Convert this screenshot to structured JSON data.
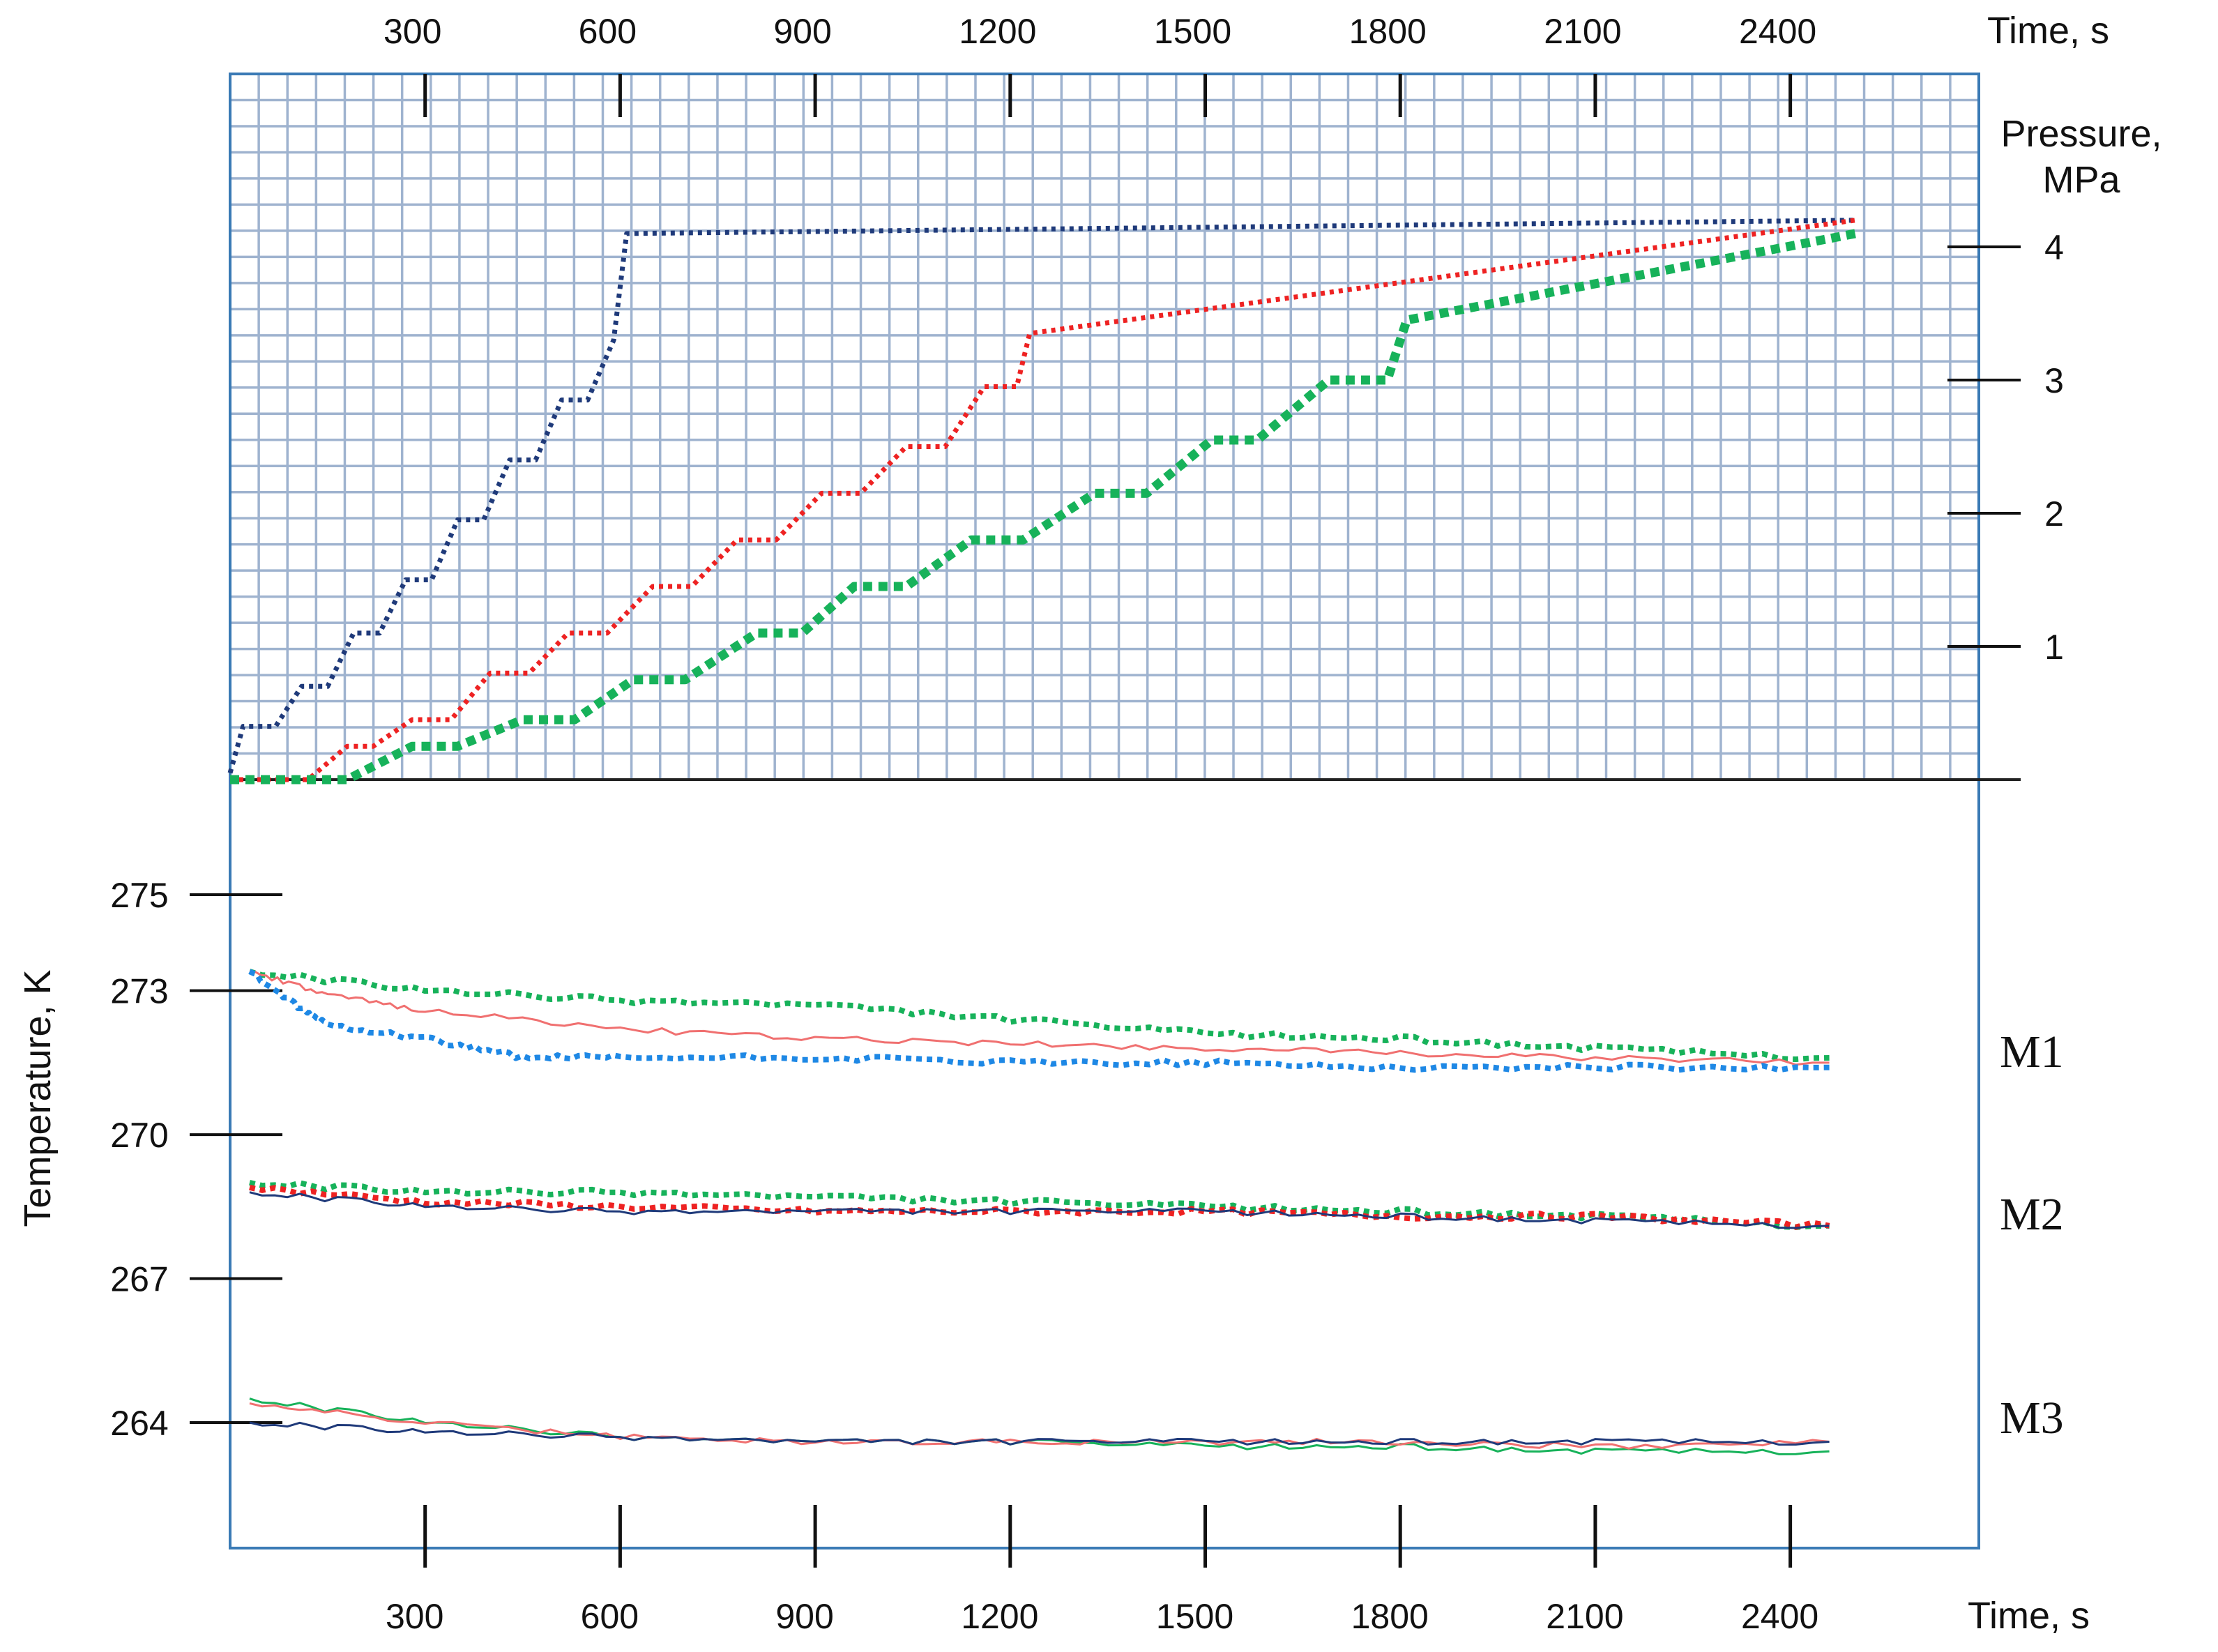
{
  "chart_data": [
    {
      "type": "line",
      "xlabel": "Time, s",
      "ylabel": "Pressure, MPa",
      "xlim": [
        0,
        2500
      ],
      "ylim": [
        0,
        4.4
      ],
      "x_ticks": [
        300,
        600,
        900,
        1200,
        1500,
        1800,
        2100,
        2400
      ],
      "y_ticks": [
        1,
        2,
        3,
        4
      ],
      "grid": true,
      "series": [
        {
          "color": "#1f3a7a",
          "style": "dotted",
          "step": true,
          "x": [
            0,
            20,
            70,
            110,
            150,
            190,
            230,
            270,
            310,
            350,
            390,
            430,
            470,
            510,
            550,
            590,
            610,
            2500
          ],
          "y": [
            0.05,
            0.4,
            0.4,
            0.7,
            0.7,
            1.1,
            1.1,
            1.5,
            1.5,
            1.95,
            1.95,
            2.4,
            2.4,
            2.85,
            2.85,
            3.3,
            4.1,
            4.2
          ]
        },
        {
          "color": "#ee2222",
          "style": "dotted",
          "step": true,
          "x": [
            0,
            60,
            120,
            180,
            220,
            280,
            340,
            400,
            460,
            520,
            580,
            650,
            710,
            780,
            840,
            910,
            970,
            1040,
            1100,
            1160,
            1210,
            1230,
            2500
          ],
          "y": [
            0.0,
            0.0,
            0.0,
            0.25,
            0.25,
            0.45,
            0.45,
            0.8,
            0.8,
            1.1,
            1.1,
            1.45,
            1.45,
            1.8,
            1.8,
            2.15,
            2.15,
            2.5,
            2.5,
            2.95,
            2.95,
            3.35,
            4.2
          ]
        },
        {
          "color": "#17b25a",
          "style": "dotted",
          "step": true,
          "x": [
            0,
            180,
            280,
            350,
            450,
            530,
            620,
            700,
            810,
            880,
            960,
            1040,
            1140,
            1220,
            1330,
            1410,
            1510,
            1580,
            1690,
            1780,
            1810,
            2500
          ],
          "y": [
            0.0,
            0.0,
            0.25,
            0.25,
            0.45,
            0.45,
            0.75,
            0.75,
            1.1,
            1.1,
            1.45,
            1.45,
            1.8,
            1.8,
            2.15,
            2.15,
            2.55,
            2.55,
            3.0,
            3.0,
            3.45,
            4.1
          ]
        }
      ]
    },
    {
      "type": "line",
      "xlabel": "Time, s",
      "ylabel": "Temperature, K",
      "xlim": [
        30,
        2500
      ],
      "ylim": [
        262,
        278
      ],
      "x_ticks": [
        300,
        600,
        900,
        1200,
        1500,
        1800,
        2100,
        2400
      ],
      "y_ticks": [
        264,
        267,
        270,
        273,
        275
      ],
      "grid": false,
      "annotations": [
        "M1",
        "M2",
        "M3"
      ],
      "series": [
        {
          "group": "M1",
          "color": "#17b25a",
          "style": "dotted",
          "x": [
            30,
            300,
            600,
            900,
            1200,
            1500,
            1800,
            2100,
            2460
          ],
          "y": [
            273.4,
            273.0,
            272.8,
            272.7,
            272.4,
            272.1,
            272.0,
            271.8,
            271.6
          ]
        },
        {
          "group": "M1",
          "color": "#f07070",
          "style": "solid-thin",
          "x": [
            30,
            150,
            300,
            600,
            900,
            1200,
            1500,
            1800,
            2100,
            2460
          ],
          "y": [
            273.4,
            272.9,
            272.6,
            272.2,
            272.0,
            271.9,
            271.8,
            271.7,
            271.6,
            271.5
          ]
        },
        {
          "group": "M1",
          "color": "#1e88e5",
          "style": "dotted",
          "x": [
            30,
            110,
            150,
            300,
            450,
            600,
            900,
            1200,
            1500,
            1800,
            2100,
            2460
          ],
          "y": [
            273.4,
            272.6,
            272.3,
            272.0,
            271.6,
            271.6,
            271.6,
            271.5,
            271.5,
            271.4,
            271.4,
            271.4
          ]
        },
        {
          "group": "M2",
          "color": "#17b25a",
          "style": "dotted",
          "x": [
            30,
            300,
            600,
            900,
            1200,
            1500,
            1800,
            2100,
            2460
          ],
          "y": [
            269.0,
            268.8,
            268.8,
            268.7,
            268.6,
            268.5,
            268.4,
            268.3,
            268.1
          ]
        },
        {
          "group": "M2",
          "color": "#ee2222",
          "style": "dotted",
          "x": [
            30,
            300,
            600,
            900,
            1200,
            1500,
            1800,
            2100,
            2460
          ],
          "y": [
            268.9,
            268.6,
            268.5,
            268.4,
            268.4,
            268.4,
            268.3,
            268.3,
            268.1
          ]
        },
        {
          "group": "M2",
          "color": "#1f3a7a",
          "style": "solid-thin",
          "x": [
            30,
            300,
            600,
            900,
            1200,
            1500,
            1800,
            2100,
            2460
          ],
          "y": [
            268.8,
            268.5,
            268.4,
            268.4,
            268.4,
            268.4,
            268.3,
            268.2,
            268.1
          ]
        },
        {
          "group": "M3",
          "color": "#17b25a",
          "style": "solid-thin",
          "x": [
            30,
            300,
            600,
            900,
            1200,
            1500,
            1800,
            2100,
            2460
          ],
          "y": [
            264.5,
            264.0,
            263.7,
            263.6,
            263.6,
            263.5,
            263.5,
            263.4,
            263.4
          ]
        },
        {
          "group": "M3",
          "color": "#f07070",
          "style": "solid-thin",
          "x": [
            30,
            300,
            600,
            900,
            1200,
            1500,
            1800,
            2100,
            2460
          ],
          "y": [
            264.4,
            264.0,
            263.7,
            263.6,
            263.6,
            263.6,
            263.6,
            263.5,
            263.6
          ]
        },
        {
          "group": "M3",
          "color": "#1f3a7a",
          "style": "solid-thin",
          "x": [
            30,
            300,
            600,
            900,
            1200,
            1500,
            1800,
            2100,
            2460
          ],
          "y": [
            264.0,
            263.8,
            263.7,
            263.6,
            263.6,
            263.6,
            263.6,
            263.6,
            263.6
          ]
        }
      ]
    }
  ]
}
